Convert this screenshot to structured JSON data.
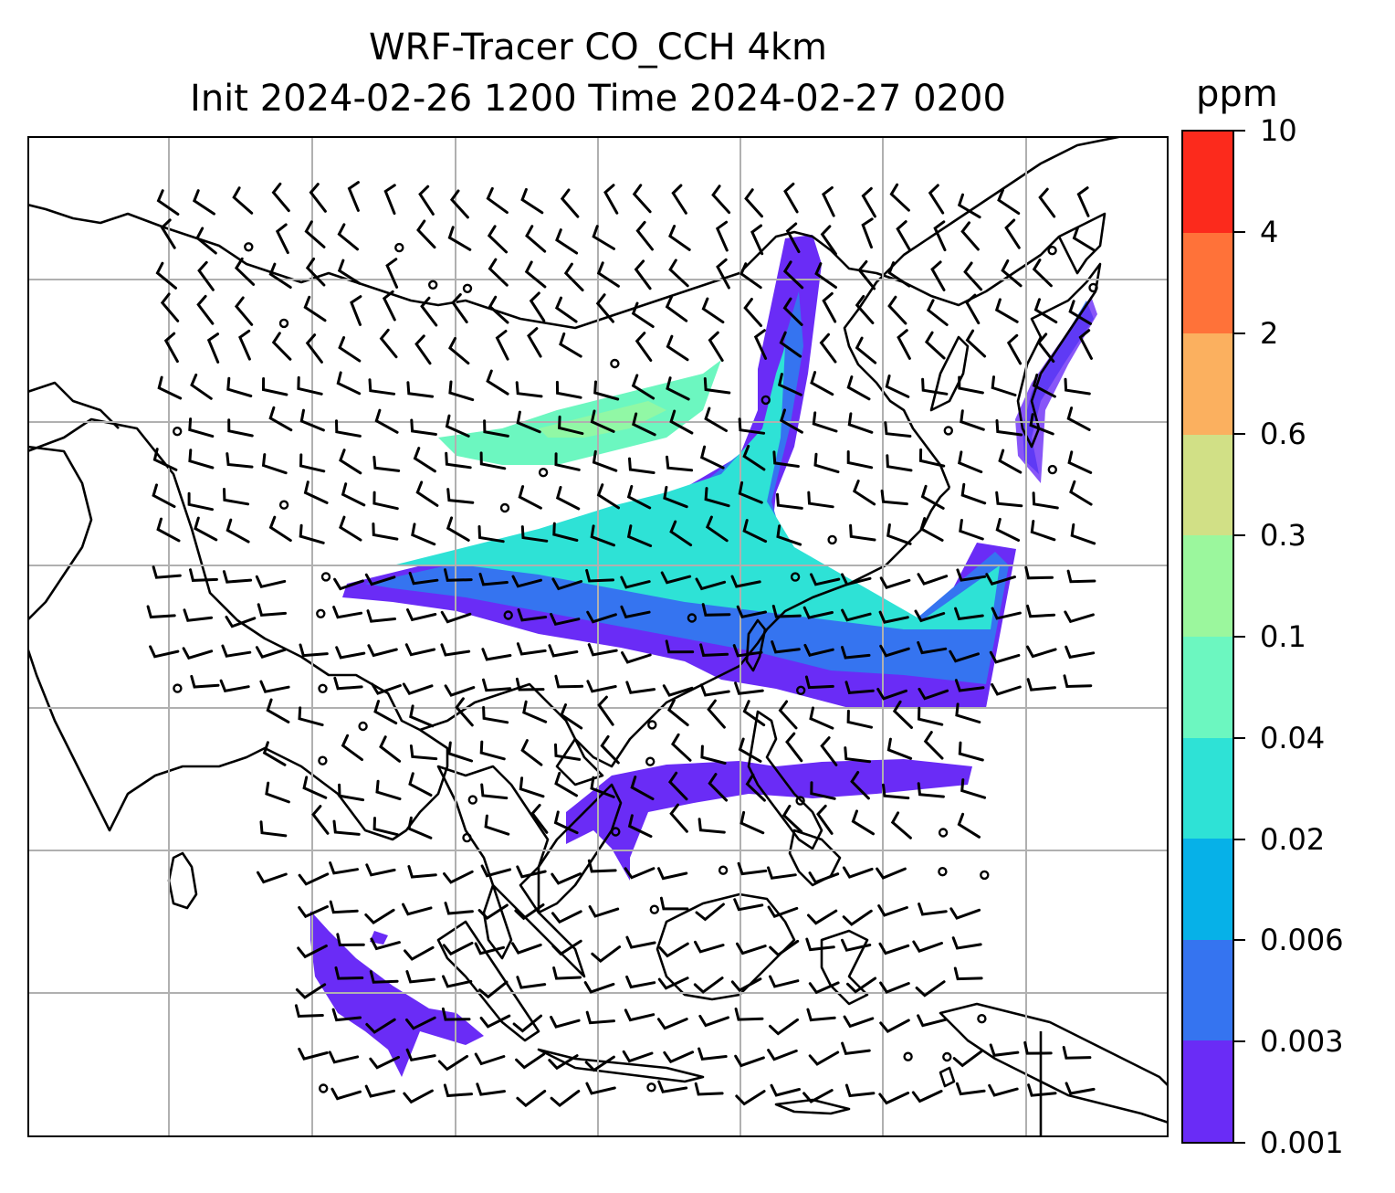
{
  "title": {
    "line1": "WRF-Tracer CO_CCH 4km",
    "line2": "Init 2024-02-26 1200 Time 2024-02-27 0200"
  },
  "colorbar": {
    "unit": "ppm",
    "ticks": [
      "0.001",
      "0.003",
      "0.006",
      "0.02",
      "0.04",
      "0.1",
      "0.3",
      "0.6",
      "2",
      "4",
      "10"
    ],
    "colors": [
      "#6a2cf6",
      "#3574f0",
      "#06b1e8",
      "#2ee2d6",
      "#6cf7c0",
      "#9bf79d",
      "#d1e086",
      "#fbb05f",
      "#ff7239",
      "#fc2a1c"
    ]
  },
  "map": {
    "coastline_color": "#000000",
    "grid_color": "#b0b0b0",
    "gridlines": true
  }
}
